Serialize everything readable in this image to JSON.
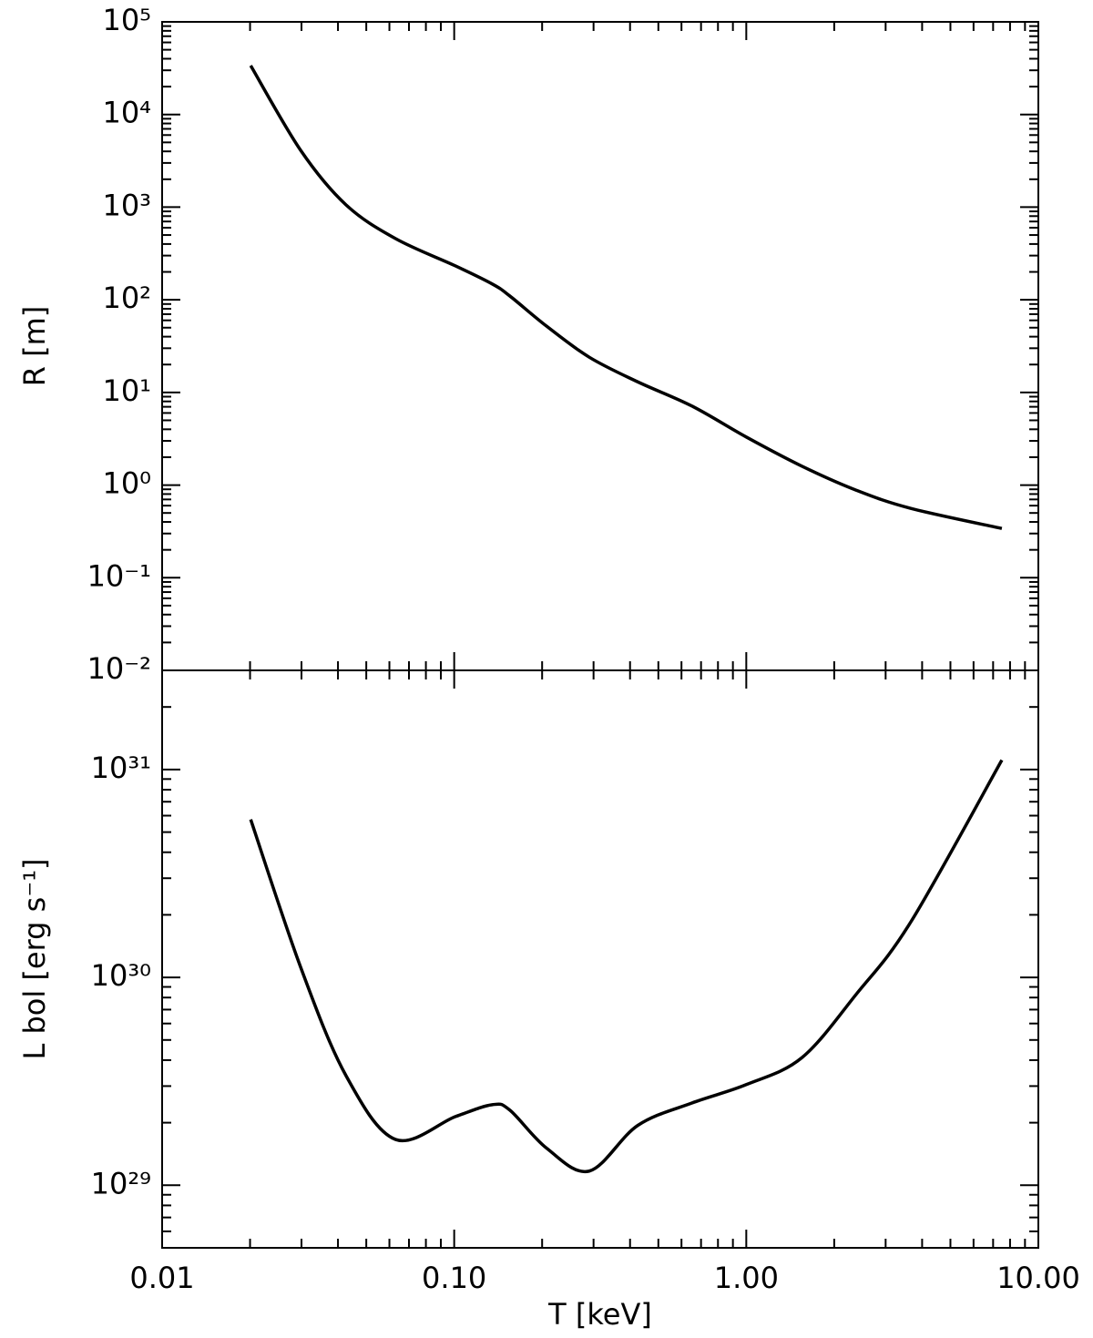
{
  "chart_data": [
    {
      "type": "line",
      "ylabel": "R  [m]",
      "log_x": true,
      "log_y": true,
      "color": "#000000",
      "x": [
        0.0201,
        0.0298,
        0.0426,
        0.063,
        0.101,
        0.135,
        0.155,
        0.207,
        0.29,
        0.425,
        0.653,
        1.0,
        1.55,
        2.38,
        3.66,
        7.5
      ],
      "values": [
        33700,
        4110,
        1060,
        457,
        232,
        148,
        110,
        52,
        24,
        13,
        7.1,
        3.3,
        1.6,
        0.88,
        0.56,
        0.34
      ],
      "xlim": [
        0.01,
        10
      ],
      "xticks": [
        0.01,
        0.1,
        1,
        10
      ],
      "ylim": [
        0.01,
        100000
      ],
      "yticks": [
        {
          "value": 100000,
          "label": "10⁵"
        },
        {
          "value": 10000,
          "label": "10⁴"
        },
        {
          "value": 1000,
          "label": "10³"
        },
        {
          "value": 100,
          "label": "10²"
        },
        {
          "value": 10,
          "label": "10¹"
        },
        {
          "value": 1,
          "label": "10⁰"
        },
        {
          "value": 0.1,
          "label": "10⁻¹"
        },
        {
          "value": 0.01,
          "label": "10⁻²"
        }
      ]
    },
    {
      "type": "line",
      "ylabel": "L bol  [erg s⁻¹]",
      "xlabel": "T  [keV]",
      "log_x": true,
      "log_y": true,
      "color": "#000000",
      "x": [
        0.0201,
        0.0298,
        0.0426,
        0.063,
        0.101,
        0.135,
        0.155,
        0.207,
        0.29,
        0.425,
        0.653,
        1.0,
        1.55,
        2.38,
        3.66,
        7.5
      ],
      "values": [
        5.75e+30,
        1.12e+30,
        3.37e+29,
        1.66e+29,
        2.14e+29,
        2.44e+29,
        2.3e+29,
        1.51e+29,
        1.17e+29,
        1.94e+29,
        2.49e+29,
        3.05e+29,
        4.11e+29,
        8.3e+29,
        1.85e+30,
        1.11e+31
      ],
      "xlim": [
        0.01,
        10
      ],
      "xticks": [
        0.01,
        {
          "value": 0.1,
          "label": "0.10"
        },
        {
          "value": 1,
          "label": "1.00"
        },
        {
          "value": 10,
          "label": "10.00"
        }
      ],
      "ylim": [
        5e+28,
        3e+31
      ],
      "yticks": [
        {
          "value": 1e+29,
          "label": "10²⁹"
        },
        {
          "value": 1e+30,
          "label": "10³⁰"
        },
        {
          "value": 1e+31,
          "label": "10³¹"
        }
      ]
    }
  ]
}
